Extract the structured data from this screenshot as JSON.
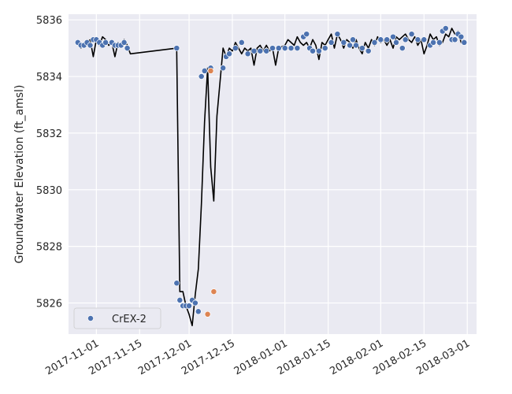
{
  "chart_data": {
    "type": "scatter",
    "title": "",
    "xlabel": "",
    "ylabel": "Groundwater Elevation (ft_amsl)",
    "xlim": [
      "2017-10-23",
      "2018-03-04"
    ],
    "ylim": [
      5824.9,
      5836.2
    ],
    "xticks": [
      "2017-11-01",
      "2017-11-15",
      "2017-12-01",
      "2017-12-15",
      "2018-01-01",
      "2018-01-15",
      "2018-02-01",
      "2018-02-15",
      "2018-03-01"
    ],
    "yticks": [
      5826,
      5828,
      5830,
      5832,
      5834,
      5836
    ],
    "grid": true,
    "legend_position": "bottom-left",
    "colors": {
      "primary": "#4c72b0",
      "secondary": "#dd8452",
      "line": "#000000",
      "plot_bg": "#eaeaf2"
    },
    "series": [
      {
        "name": "CrEX-2",
        "kind": "scatter",
        "color": "#4c72b0",
        "points": [
          [
            "2017-10-26",
            5835.2
          ],
          [
            "2017-10-27",
            5835.1
          ],
          [
            "2017-10-28",
            5835.1
          ],
          [
            "2017-10-29",
            5835.2
          ],
          [
            "2017-10-30",
            5835.1
          ],
          [
            "2017-10-31",
            5835.3
          ],
          [
            "2017-11-01",
            5835.3
          ],
          [
            "2017-11-02",
            5835.2
          ],
          [
            "2017-11-03",
            5835.1
          ],
          [
            "2017-11-04",
            5835.2
          ],
          [
            "2017-11-06",
            5835.2
          ],
          [
            "2017-11-07",
            5835.1
          ],
          [
            "2017-11-08",
            5835.1
          ],
          [
            "2017-11-09",
            5835.1
          ],
          [
            "2017-11-10",
            5835.2
          ],
          [
            "2017-11-11",
            5835.0
          ],
          [
            "2017-11-27",
            5835.0
          ],
          [
            "2017-11-27",
            5826.7
          ],
          [
            "2017-11-28",
            5826.1
          ],
          [
            "2017-11-29",
            5825.9
          ],
          [
            "2017-11-30",
            5825.9
          ],
          [
            "2017-12-01",
            5825.9
          ],
          [
            "2017-12-02",
            5826.1
          ],
          [
            "2017-12-03",
            5826.0
          ],
          [
            "2017-12-04",
            5825.7
          ],
          [
            "2017-12-05",
            5834.0
          ],
          [
            "2017-12-06",
            5834.2
          ],
          [
            "2017-12-08",
            5834.3
          ],
          [
            "2017-12-12",
            5834.3
          ],
          [
            "2017-12-13",
            5834.7
          ],
          [
            "2017-12-14",
            5834.8
          ],
          [
            "2017-12-16",
            5835.0
          ],
          [
            "2017-12-18",
            5835.2
          ],
          [
            "2017-12-20",
            5834.8
          ],
          [
            "2017-12-22",
            5834.9
          ],
          [
            "2017-12-24",
            5834.9
          ],
          [
            "2017-12-26",
            5834.9
          ],
          [
            "2017-12-28",
            5835.0
          ],
          [
            "2017-12-30",
            5835.0
          ],
          [
            "2018-01-01",
            5835.0
          ],
          [
            "2018-01-03",
            5835.0
          ],
          [
            "2018-01-05",
            5835.0
          ],
          [
            "2018-01-07",
            5835.4
          ],
          [
            "2018-01-08",
            5835.5
          ],
          [
            "2018-01-09",
            5835.0
          ],
          [
            "2018-01-10",
            5834.9
          ],
          [
            "2018-01-12",
            5834.9
          ],
          [
            "2018-01-14",
            5835.0
          ],
          [
            "2018-01-16",
            5835.2
          ],
          [
            "2018-01-18",
            5835.5
          ],
          [
            "2018-01-20",
            5835.2
          ],
          [
            "2018-01-22",
            5835.1
          ],
          [
            "2018-01-23",
            5835.3
          ],
          [
            "2018-01-24",
            5835.1
          ],
          [
            "2018-01-26",
            5835.0
          ],
          [
            "2018-01-28",
            5834.9
          ],
          [
            "2018-01-30",
            5835.2
          ],
          [
            "2018-02-01",
            5835.3
          ],
          [
            "2018-02-03",
            5835.3
          ],
          [
            "2018-02-05",
            5835.4
          ],
          [
            "2018-02-06",
            5835.2
          ],
          [
            "2018-02-08",
            5835.0
          ],
          [
            "2018-02-09",
            5835.3
          ],
          [
            "2018-02-11",
            5835.5
          ],
          [
            "2018-02-13",
            5835.3
          ],
          [
            "2018-02-15",
            5835.3
          ],
          [
            "2018-02-17",
            5835.1
          ],
          [
            "2018-02-18",
            5835.2
          ],
          [
            "2018-02-20",
            5835.2
          ],
          [
            "2018-02-21",
            5835.6
          ],
          [
            "2018-02-22",
            5835.7
          ],
          [
            "2018-02-24",
            5835.3
          ],
          [
            "2018-02-25",
            5835.3
          ],
          [
            "2018-02-26",
            5835.5
          ],
          [
            "2018-02-27",
            5835.4
          ],
          [
            "2018-02-28",
            5835.2
          ]
        ]
      },
      {
        "name": "",
        "kind": "scatter",
        "color": "#dd8452",
        "points": [
          [
            "2017-12-07",
            5825.6
          ],
          [
            "2017-12-08",
            5834.2
          ],
          [
            "2017-12-09",
            5826.4
          ]
        ]
      },
      {
        "name": "",
        "kind": "line",
        "color": "#000000",
        "points": [
          [
            "2017-10-26",
            5835.2
          ],
          [
            "2017-10-27",
            5835.0
          ],
          [
            "2017-10-28",
            5835.1
          ],
          [
            "2017-10-29",
            5835.2
          ],
          [
            "2017-10-30",
            5835.3
          ],
          [
            "2017-10-31",
            5834.7
          ],
          [
            "2017-11-01",
            5835.3
          ],
          [
            "2017-11-02",
            5835.1
          ],
          [
            "2017-11-03",
            5835.4
          ],
          [
            "2017-11-04",
            5835.3
          ],
          [
            "2017-11-05",
            5835.1
          ],
          [
            "2017-11-06",
            5835.2
          ],
          [
            "2017-11-07",
            5834.7
          ],
          [
            "2017-11-08",
            5835.2
          ],
          [
            "2017-11-09",
            5835.1
          ],
          [
            "2017-11-10",
            5835.3
          ],
          [
            "2017-11-11",
            5835.1
          ],
          [
            "2017-11-12",
            5834.8
          ],
          [
            "2017-11-27",
            5835.0
          ],
          [
            "2017-11-28",
            5826.4
          ],
          [
            "2017-11-29",
            5826.4
          ],
          [
            "2017-11-30",
            5825.9
          ],
          [
            "2017-12-01",
            5825.6
          ],
          [
            "2017-12-02",
            5825.2
          ],
          [
            "2017-12-03",
            5826.3
          ],
          [
            "2017-12-04",
            5827.2
          ],
          [
            "2017-12-05",
            5829.5
          ],
          [
            "2017-12-06",
            5832.4
          ],
          [
            "2017-12-07",
            5834.3
          ],
          [
            "2017-12-08",
            5830.8
          ],
          [
            "2017-12-09",
            5829.6
          ],
          [
            "2017-12-10",
            5832.6
          ],
          [
            "2017-12-12",
            5835.0
          ],
          [
            "2017-12-13",
            5834.7
          ],
          [
            "2017-12-14",
            5835.0
          ],
          [
            "2017-12-15",
            5834.9
          ],
          [
            "2017-12-16",
            5835.2
          ],
          [
            "2017-12-17",
            5835.0
          ],
          [
            "2017-12-18",
            5834.8
          ],
          [
            "2017-12-19",
            5835.0
          ],
          [
            "2017-12-20",
            5834.9
          ],
          [
            "2017-12-21",
            5835.0
          ],
          [
            "2017-12-22",
            5834.4
          ],
          [
            "2017-12-23",
            5835.0
          ],
          [
            "2017-12-24",
            5835.1
          ],
          [
            "2017-12-25",
            5834.9
          ],
          [
            "2017-12-26",
            5835.1
          ],
          [
            "2017-12-27",
            5834.9
          ],
          [
            "2017-12-28",
            5835.0
          ],
          [
            "2017-12-29",
            5834.4
          ],
          [
            "2017-12-30",
            5835.0
          ],
          [
            "2018-01-01",
            5835.1
          ],
          [
            "2018-01-02",
            5835.3
          ],
          [
            "2018-01-03",
            5835.2
          ],
          [
            "2018-01-04",
            5835.1
          ],
          [
            "2018-01-05",
            5835.4
          ],
          [
            "2018-01-06",
            5835.2
          ],
          [
            "2018-01-07",
            5835.1
          ],
          [
            "2018-01-08",
            5835.2
          ],
          [
            "2018-01-09",
            5835.0
          ],
          [
            "2018-01-10",
            5835.3
          ],
          [
            "2018-01-11",
            5835.1
          ],
          [
            "2018-01-12",
            5834.6
          ],
          [
            "2018-01-13",
            5835.2
          ],
          [
            "2018-01-14",
            5835.1
          ],
          [
            "2018-01-15",
            5835.3
          ],
          [
            "2018-01-16",
            5835.5
          ],
          [
            "2018-01-17",
            5835.0
          ],
          [
            "2018-01-18",
            5835.5
          ],
          [
            "2018-01-19",
            5835.3
          ],
          [
            "2018-01-20",
            5835.0
          ],
          [
            "2018-01-21",
            5835.3
          ],
          [
            "2018-01-22",
            5835.2
          ],
          [
            "2018-01-23",
            5835.0
          ],
          [
            "2018-01-24",
            5835.3
          ],
          [
            "2018-01-25",
            5835.0
          ],
          [
            "2018-01-26",
            5834.8
          ],
          [
            "2018-01-27",
            5835.2
          ],
          [
            "2018-01-28",
            5835.0
          ],
          [
            "2018-01-29",
            5835.3
          ],
          [
            "2018-01-30",
            5835.1
          ],
          [
            "2018-01-31",
            5835.4
          ],
          [
            "2018-02-01",
            5835.2
          ],
          [
            "2018-02-02",
            5835.3
          ],
          [
            "2018-02-03",
            5835.1
          ],
          [
            "2018-02-04",
            5835.3
          ],
          [
            "2018-02-05",
            5835.0
          ],
          [
            "2018-02-06",
            5835.4
          ],
          [
            "2018-02-07",
            5835.3
          ],
          [
            "2018-02-08",
            5835.4
          ],
          [
            "2018-02-09",
            5835.5
          ],
          [
            "2018-02-10",
            5835.3
          ],
          [
            "2018-02-11",
            5835.2
          ],
          [
            "2018-02-12",
            5835.4
          ],
          [
            "2018-02-13",
            5835.1
          ],
          [
            "2018-02-14",
            5835.3
          ],
          [
            "2018-02-15",
            5834.8
          ],
          [
            "2018-02-16",
            5835.1
          ],
          [
            "2018-02-17",
            5835.5
          ],
          [
            "2018-02-18",
            5835.3
          ],
          [
            "2018-02-19",
            5835.4
          ],
          [
            "2018-02-20",
            5835.1
          ],
          [
            "2018-02-21",
            5835.2
          ],
          [
            "2018-02-22",
            5835.5
          ],
          [
            "2018-02-23",
            5835.4
          ],
          [
            "2018-02-24",
            5835.7
          ],
          [
            "2018-02-25",
            5835.5
          ],
          [
            "2018-02-26",
            5835.6
          ],
          [
            "2018-02-27",
            5835.2
          ],
          [
            "2018-02-28",
            5835.3
          ]
        ]
      }
    ]
  }
}
